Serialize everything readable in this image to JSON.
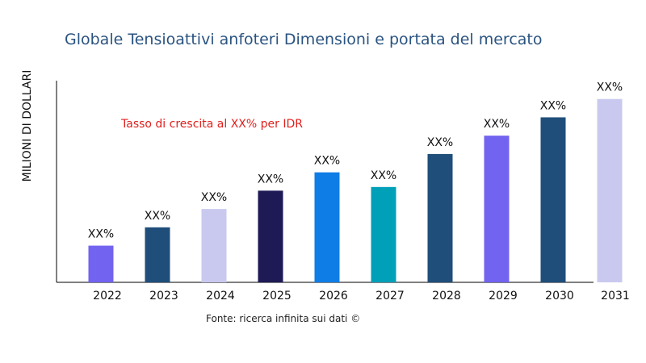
{
  "chart_data": {
    "type": "bar",
    "title": "Globale Tensioattivi anfoteri Dimensioni e portata del mercato",
    "xlabel": "",
    "ylabel": "MILIONI DI DOLLARI",
    "categories": [
      "2022",
      "2023",
      "2024",
      "2025",
      "2026",
      "2027",
      "2028",
      "2029",
      "2030",
      "2031"
    ],
    "values": [
      2.0,
      3.0,
      4.0,
      5.0,
      6.0,
      5.2,
      7.0,
      8.0,
      9.0,
      10.0
    ],
    "data_labels": [
      "XX%",
      "XX%",
      "XX%",
      "XX%",
      "XX%",
      "XX%",
      "XX%",
      "XX%",
      "XX%",
      "XX%"
    ],
    "colors": [
      "#7263f0",
      "#1f4e7a",
      "#c9c9f0",
      "#1e1a56",
      "#0f7de6",
      "#00a0b8",
      "#1f4e7a",
      "#7263f0",
      "#1f4e7a",
      "#c9c9f0"
    ],
    "ylim": [
      0,
      11
    ],
    "grid": false,
    "legend": "none",
    "annotation": "Tasso di crescita al XX% per IDR",
    "source": "Fonte: ricerca infinita sui dati ©"
  }
}
